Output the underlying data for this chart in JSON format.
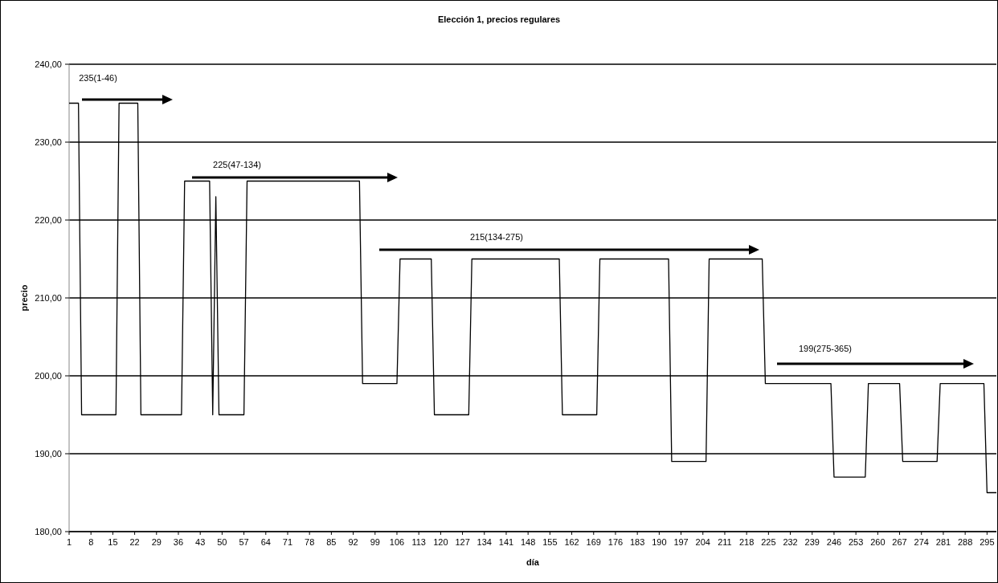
{
  "chart_data": {
    "type": "line",
    "title": "Elección 1, precios regulares",
    "xlabel": "día",
    "ylabel": "precio",
    "series": [
      {
        "color": "#000000",
        "x": [
          1,
          4,
          5,
          16,
          17,
          23,
          24,
          37,
          38,
          46,
          47,
          48,
          49,
          57,
          58,
          94,
          95,
          106,
          107,
          117,
          118,
          129,
          130,
          158,
          159,
          170,
          171,
          193,
          194,
          205,
          206,
          223,
          224,
          245,
          246,
          256,
          257,
          267,
          268,
          279,
          280,
          294,
          295,
          298
        ],
        "values": [
          235,
          235,
          195,
          195,
          235,
          235,
          195,
          195,
          225,
          225,
          195,
          223,
          195,
          195,
          225,
          225,
          199,
          199,
          215,
          215,
          195,
          195,
          215,
          215,
          195,
          195,
          215,
          215,
          189,
          189,
          215,
          215,
          199,
          199,
          187,
          187,
          199,
          199,
          189,
          189,
          199,
          199,
          185,
          185
        ]
      }
    ],
    "xlim": [
      1,
      298
    ],
    "xticks": [
      1,
      8,
      15,
      22,
      29,
      36,
      43,
      50,
      57,
      64,
      71,
      78,
      85,
      92,
      99,
      106,
      113,
      120,
      127,
      134,
      141,
      148,
      155,
      162,
      169,
      176,
      183,
      190,
      197,
      204,
      211,
      218,
      225,
      232,
      239,
      246,
      253,
      260,
      267,
      274,
      281,
      288,
      295
    ],
    "ylim": [
      180,
      240
    ],
    "yticks": [
      {
        "value": 180,
        "label": "180,00"
      },
      {
        "value": 190,
        "label": "190,00"
      },
      {
        "value": 200,
        "label": "200,00"
      },
      {
        "value": 210,
        "label": "210,00"
      },
      {
        "value": 220,
        "label": "220,00"
      },
      {
        "value": 230,
        "label": "230,00"
      },
      {
        "value": 240,
        "label": "240,00"
      }
    ],
    "grid": "y",
    "marker": "none",
    "line_style": "solid",
    "annotations": [
      "235(1-46)",
      "225(47-134)",
      "215(134-275)",
      "199(275-365)"
    ]
  }
}
